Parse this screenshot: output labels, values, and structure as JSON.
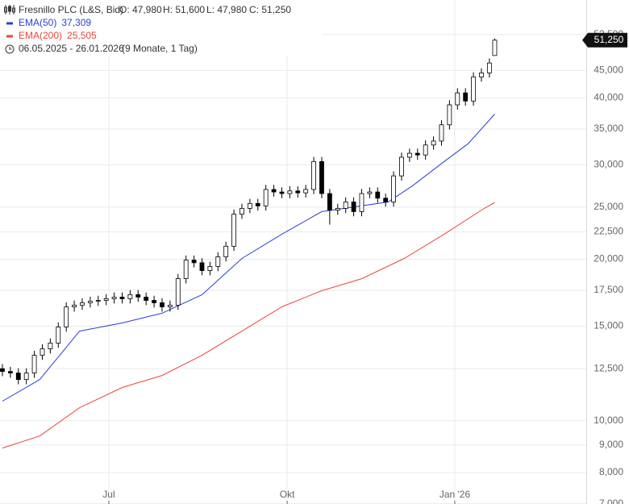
{
  "chart_data": {
    "type": "candlestick",
    "symbol": "Fresnillo PLC (L&S, Bid)",
    "ohlc_labels": [
      "O: 47,980",
      "H: 51,600",
      "L: 47,980",
      "C: 51,250"
    ],
    "date_range": "06.05.2025 - 26.01.2026",
    "period": "(9 Monate, 1 Tag)",
    "log_scale": true,
    "grid": true,
    "candle_up_color": "#ffffff",
    "candle_down_color": "#000000",
    "x": [
      0,
      3,
      6,
      9,
      12,
      15,
      18,
      21,
      24,
      27,
      30,
      33,
      36,
      39,
      42,
      45,
      48,
      51,
      54,
      57,
      60,
      63,
      66,
      69,
      72,
      75,
      78,
      81,
      84,
      87,
      90,
      93,
      96,
      99,
      102,
      105,
      108,
      111,
      114,
      117,
      120,
      123,
      126,
      129,
      132,
      135,
      138,
      141,
      144,
      147,
      150,
      153,
      156,
      159,
      162,
      165,
      168,
      171,
      174,
      177,
      180,
      183,
      185
    ],
    "open": [
      12500,
      12350,
      12270,
      11930,
      12270,
      13240,
      13610,
      13950,
      14950,
      16300,
      16420,
      16590,
      16700,
      16760,
      16880,
      17000,
      16880,
      17180,
      17000,
      16760,
      16590,
      16300,
      16420,
      18400,
      19930,
      19700,
      19050,
      19390,
      20210,
      21150,
      24270,
      24880,
      25410,
      25150,
      26990,
      26700,
      26520,
      26820,
      26600,
      26990,
      30430,
      26520,
      24700,
      24880,
      25580,
      24540,
      26520,
      26700,
      26000,
      25580,
      28610,
      31000,
      31530,
      31300,
      32670,
      33230,
      35630,
      38820,
      40870,
      39460,
      43770,
      44530,
      47980
    ],
    "high": [
      12750,
      12600,
      12520,
      12520,
      13500,
      13880,
      14230,
      15250,
      16630,
      16750,
      16920,
      17030,
      17100,
      17220,
      17340,
      17340,
      17520,
      17520,
      17340,
      17100,
      16920,
      16750,
      18770,
      20330,
      20330,
      20090,
      19780,
      20610,
      21570,
      24760,
      25380,
      25920,
      25920,
      27530,
      27530,
      27230,
      27360,
      27360,
      27530,
      31040,
      31040,
      27050,
      25380,
      26090,
      26090,
      27050,
      27230,
      27230,
      26520,
      29180,
      31620,
      32160,
      32160,
      33320,
      33890,
      36340,
      39600,
      41690,
      41690,
      44650,
      45420,
      47390,
      51600
    ],
    "low": [
      12100,
      12020,
      11690,
      11690,
      12020,
      12980,
      13340,
      13670,
      14650,
      15970,
      16090,
      16260,
      16370,
      16420,
      16540,
      16540,
      16540,
      16660,
      16420,
      16260,
      15970,
      15970,
      16090,
      18030,
      19310,
      18670,
      18670,
      19000,
      19810,
      20730,
      23780,
      24380,
      24650,
      24650,
      26170,
      25990,
      25990,
      26070,
      26070,
      26450,
      25990,
      23210,
      24210,
      24380,
      24050,
      24050,
      25990,
      25480,
      25070,
      25070,
      28040,
      30380,
      30670,
      30670,
      32020,
      32570,
      34920,
      38040,
      38670,
      38670,
      42890,
      43640,
      47980
    ],
    "close": [
      12350,
      12270,
      11930,
      12270,
      13240,
      13610,
      13950,
      14950,
      16300,
      16420,
      16590,
      16700,
      16760,
      16880,
      17000,
      16880,
      17180,
      17000,
      16760,
      16590,
      16300,
      16420,
      18400,
      19930,
      19700,
      19050,
      19390,
      20210,
      21150,
      24270,
      24880,
      25410,
      25150,
      26990,
      26700,
      26520,
      26820,
      26600,
      26990,
      30430,
      26520,
      24700,
      24880,
      25580,
      24540,
      26520,
      26700,
      26000,
      25580,
      28610,
      31000,
      31530,
      31300,
      32670,
      33230,
      35630,
      38820,
      40870,
      39460,
      43770,
      44530,
      46460,
      51250
    ],
    "series": [
      {
        "name": "EMA(50)",
        "last_label": "37,309",
        "color": "#2b3fd6",
        "x": [
          0,
          14,
          29,
          45,
          60,
          75,
          90,
          105,
          120,
          135,
          145,
          154,
          166,
          175,
          185
        ],
        "values": [
          10870,
          11930,
          14690,
          15210,
          15860,
          17170,
          20070,
          22270,
          24540,
          25150,
          25580,
          27390,
          30430,
          32850,
          37309
        ]
      },
      {
        "name": "EMA(200)",
        "last_label": "25,505",
        "color": "#e8473d",
        "x": [
          0,
          14,
          29,
          45,
          60,
          75,
          90,
          105,
          120,
          135,
          151,
          166,
          181,
          185
        ],
        "values": [
          8890,
          9360,
          10570,
          11530,
          12140,
          13240,
          14690,
          16300,
          17470,
          18400,
          20070,
          22270,
          24880,
          25505
        ]
      }
    ],
    "last_price": {
      "value": 51250,
      "label": "51,250"
    },
    "xlim": [
      -0.9,
      219.4
    ],
    "xticks": [
      {
        "value": 40,
        "label": "Jul"
      },
      {
        "value": 107,
        "label": "Okt"
      },
      {
        "value": 170,
        "label": "Jan '26"
      }
    ],
    "ylim": [
      6990,
      60900
    ],
    "yticks": [
      {
        "value": 7000,
        "label": "7,000"
      },
      {
        "value": 8000,
        "label": "8,000"
      },
      {
        "value": 9000,
        "label": "9,000"
      },
      {
        "value": 10000,
        "label": "10,000"
      },
      {
        "value": 12500,
        "label": "12,500"
      },
      {
        "value": 15000,
        "label": "15,000"
      },
      {
        "value": 17500,
        "label": "17,500"
      },
      {
        "value": 20000,
        "label": "20,000"
      },
      {
        "value": 22500,
        "label": "22,500"
      },
      {
        "value": 25000,
        "label": "25,000"
      },
      {
        "value": 30000,
        "label": "30,000"
      },
      {
        "value": 35000,
        "label": "35,000"
      },
      {
        "value": 40000,
        "label": "40,000"
      },
      {
        "value": 45000,
        "label": "45,000"
      },
      {
        "value": 52500,
        "label": "52,500"
      }
    ]
  }
}
